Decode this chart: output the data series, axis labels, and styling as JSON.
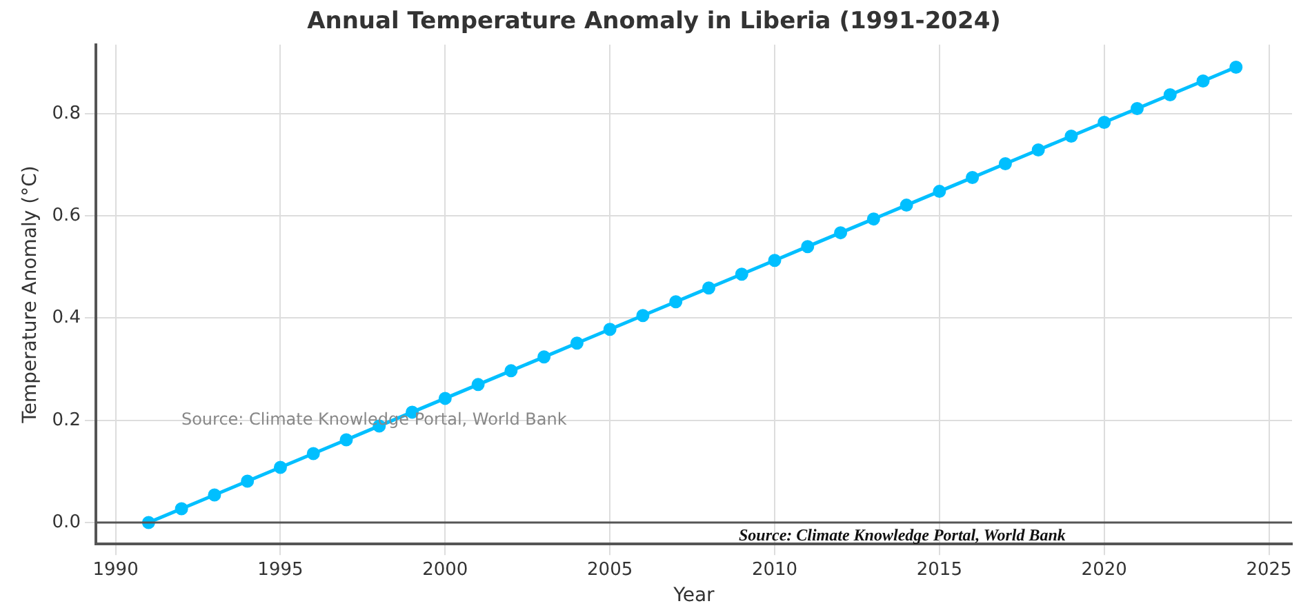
{
  "chart_data": {
    "type": "line",
    "title": "Annual Temperature Anomaly in Liberia (1991-2024)",
    "xlabel": "Year",
    "ylabel": "Temperature Anomaly (°C)",
    "x": [
      1991,
      1992,
      1993,
      1994,
      1995,
      1996,
      1997,
      1998,
      1999,
      2000,
      2001,
      2002,
      2003,
      2004,
      2005,
      2006,
      2007,
      2008,
      2009,
      2010,
      2011,
      2012,
      2013,
      2014,
      2015,
      2016,
      2017,
      2018,
      2019,
      2020,
      2021,
      2022,
      2023,
      2024
    ],
    "series": [
      {
        "color": "#00bfff",
        "values": [
          0,
          0.027,
          0.054,
          0.081,
          0.108,
          0.135,
          0.162,
          0.189,
          0.216,
          0.243,
          0.27,
          0.297,
          0.324,
          0.351,
          0.378,
          0.405,
          0.432,
          0.459,
          0.486,
          0.513,
          0.54,
          0.567,
          0.594,
          0.621,
          0.648,
          0.675,
          0.702,
          0.729,
          0.756,
          0.783,
          0.81,
          0.837,
          0.864,
          0.891
        ]
      }
    ],
    "xlim": [
      1989.4,
      2025.7
    ],
    "xticks": [
      1990,
      1995,
      2000,
      2005,
      2010,
      2015,
      2020,
      2025
    ],
    "ylim": [
      -0.042,
      0.935
    ],
    "yticks": [
      {
        "value": 0,
        "label": "0.0"
      },
      0.2,
      0.4,
      0.6,
      0.8
    ],
    "ref_lines": [
      {
        "axis": "y",
        "value": 0,
        "color": "#555555"
      }
    ],
    "annotations": [
      "Source: Climate Knowledge Portal, World Bank",
      "Source: Climate Knowledge Portal, World Bank"
    ],
    "grid": true,
    "marker": "circle",
    "line_style": "solid",
    "legend": false
  }
}
